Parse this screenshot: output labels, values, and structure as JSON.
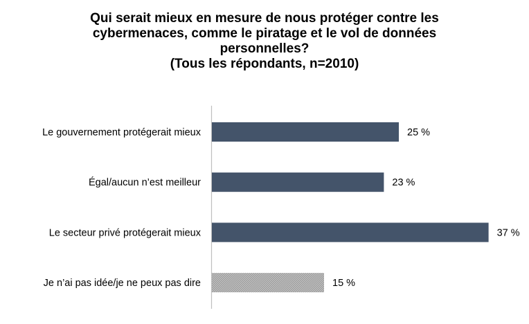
{
  "chart_data": {
    "type": "bar",
    "orientation": "horizontal",
    "title_lines": [
      "Qui serait mieux en mesure de nous protéger contre les",
      "cybermenaces, comme le piratage et le vol de données",
      "personnelles?",
      "(Tous les répondants, n=2010)"
    ],
    "categories": [
      "Le gouvernement protégerait mieux",
      "Égal/aucun n’est meilleur",
      "Le secteur privé protégerait mieux",
      "Je n’ai pas idée/je ne peux pas dire"
    ],
    "values": [
      25,
      23,
      37,
      15
    ],
    "value_labels": [
      "25 %",
      "23 %",
      "37 %",
      "15 %"
    ],
    "styles": [
      "solid",
      "solid",
      "solid",
      "hatched"
    ],
    "colors": {
      "bar": "#44546a",
      "hatch_bar": "#a6a6a6",
      "axis": "#bfbfbf"
    },
    "xlim": [
      0,
      40
    ],
    "grid": false,
    "legend": "none"
  }
}
